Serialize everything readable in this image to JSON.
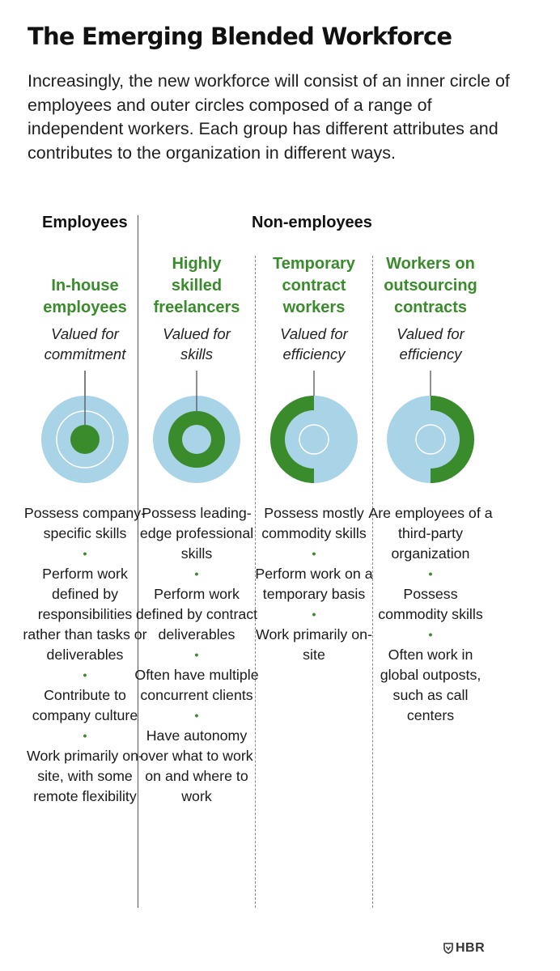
{
  "title": "The Emerging Blended Workforce",
  "subtitle": "Increasingly, the new workforce will consist of an inner circle of employees and outer circles composed of a range of independent workers. Each group has different attributes and contributes to the organization in different ways.",
  "groups": {
    "employees": "Employees",
    "non_employees": "Non-employees"
  },
  "colors": {
    "accent_green": "#3a8b2c",
    "ring_blue": "#a9d3e6"
  },
  "columns": [
    {
      "title_lines": [
        "In-house",
        "employees"
      ],
      "valued_lines": [
        "Valued for",
        "commitment"
      ],
      "highlight": "inner circle",
      "traits": [
        "Possess company-specific skills",
        "Perform work defined by responsibilities rather than tasks or deliverables",
        "Contribute to company culture",
        "Work primarily on-site, with some remote flexibility"
      ]
    },
    {
      "title_lines": [
        "Highly",
        "skilled",
        "freelancers"
      ],
      "valued_lines": [
        "Valued for",
        "skills"
      ],
      "highlight": "middle ring",
      "traits": [
        "Possess leading-edge professional skills",
        "Perform work defined by contract deliverables",
        "Often have multiple concurrent clients",
        "Have autonomy over what to work on and where to work"
      ]
    },
    {
      "title_lines": [
        "Temporary",
        "contract",
        "workers"
      ],
      "valued_lines": [
        "Valued for",
        "efficiency"
      ],
      "highlight": "outer ring, left half",
      "traits": [
        "Possess mostly commodity skills",
        "Perform work on a temporary basis",
        "Work primarily on-site"
      ]
    },
    {
      "title_lines": [
        "Workers on",
        "outsourcing",
        "contracts"
      ],
      "valued_lines": [
        "Valued for",
        "efficiency"
      ],
      "highlight": "outer ring, right half",
      "traits": [
        "Are employees of a third-party organization",
        "Possess commodity skills",
        "Often work in global outposts, such as call centers"
      ]
    }
  ],
  "logo": {
    "icon": "shield-icon",
    "text": "HBR"
  }
}
